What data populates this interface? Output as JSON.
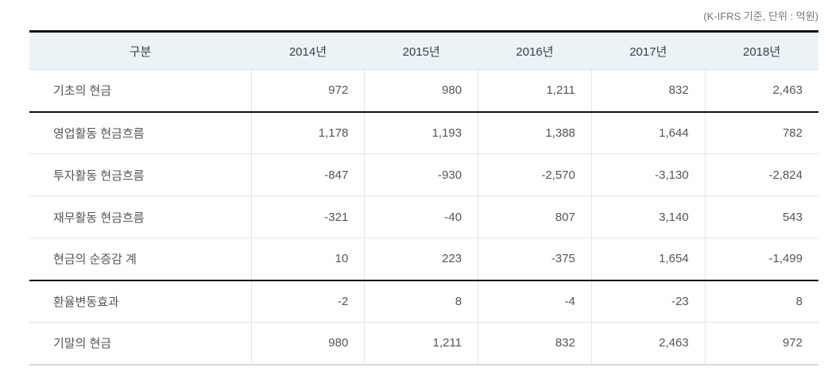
{
  "note": "(K-IFRS 기준, 단위 : 억원)",
  "table": {
    "columns": [
      "구분",
      "2014년",
      "2015년",
      "2016년",
      "2017년",
      "2018년"
    ],
    "rows": [
      {
        "label": "기초의 현금",
        "values": [
          "972",
          "980",
          "1,211",
          "832",
          "2,463"
        ],
        "divider": "dark"
      },
      {
        "label": "영업활동 현금흐름",
        "values": [
          "1,178",
          "1,193",
          "1,388",
          "1,644",
          "782"
        ],
        "divider": "light"
      },
      {
        "label": "투자활동 현금흐름",
        "values": [
          "-847",
          "-930",
          "-2,570",
          "-3,130",
          "-2,824"
        ],
        "divider": "light"
      },
      {
        "label": "재무활동 현금흐름",
        "values": [
          "-321",
          "-40",
          "807",
          "3,140",
          "543"
        ],
        "divider": "light"
      },
      {
        "label": "현금의 순증감 계",
        "values": [
          "10",
          "223",
          "-375",
          "1,654",
          "-1,499"
        ],
        "divider": "dark"
      },
      {
        "label": "환율변동효과",
        "values": [
          "-2",
          "8",
          "-4",
          "-23",
          "8"
        ],
        "divider": "light"
      },
      {
        "label": "기말의 현금",
        "values": [
          "980",
          "1,211",
          "832",
          "2,463",
          "972"
        ],
        "divider": "light"
      }
    ]
  },
  "chart_data": {
    "type": "table",
    "unit_note": "(K-IFRS 기준, 단위 : 억원)",
    "columns": [
      "구분",
      "2014년",
      "2015년",
      "2016년",
      "2017년",
      "2018년"
    ],
    "categories": [
      "2014년",
      "2015년",
      "2016년",
      "2017년",
      "2018년"
    ],
    "series": [
      {
        "name": "기초의 현금",
        "values": [
          972,
          980,
          1211,
          832,
          2463
        ]
      },
      {
        "name": "영업활동 현금흐름",
        "values": [
          1178,
          1193,
          1388,
          1644,
          782
        ]
      },
      {
        "name": "투자활동 현금흐름",
        "values": [
          -847,
          -930,
          -2570,
          -3130,
          -2824
        ]
      },
      {
        "name": "재무활동 현금흐름",
        "values": [
          -321,
          -40,
          807,
          3140,
          543
        ]
      },
      {
        "name": "현금의 순증감 계",
        "values": [
          10,
          223,
          -375,
          1654,
          -1499
        ]
      },
      {
        "name": "환율변동효과",
        "values": [
          -2,
          8,
          -4,
          -23,
          8
        ]
      },
      {
        "name": "기말의 현금",
        "values": [
          980,
          1211,
          832,
          2463,
          972
        ]
      }
    ]
  },
  "colors": {
    "header_background": "#eaf3f6",
    "header_text": "#39424b",
    "body_text": "#555555",
    "note_text": "#767676",
    "top_border": "#111111",
    "dark_divider": "#111111",
    "light_divider": "#e4e4e4",
    "bottom_border": "#d9d9d9"
  }
}
